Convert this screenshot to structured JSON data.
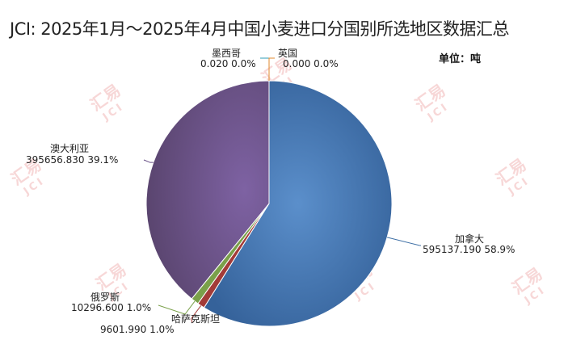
{
  "header": {
    "title": "JCI: 2025年1月～2025年4月中国小麦进口分国别所选地区数据汇总",
    "unit": "单位：吨"
  },
  "watermark": {
    "brand": "汇易",
    "abbr": "JCI"
  },
  "chart_data": {
    "type": "pie",
    "title": "JCI: 2025年1月～2025年4月中国小麦进口分国别所选地区数据汇总",
    "unit": "单位：吨",
    "slices": [
      {
        "name": "加拿大",
        "value": 595137.19,
        "value_label": "595137.190",
        "pct_label": "58.9%",
        "color": "#3e6fa5"
      },
      {
        "name": "哈萨克斯坦",
        "value": 9601.99,
        "value_label": "9601.990",
        "pct_label": "1.0%",
        "color": "#a33b38"
      },
      {
        "name": "俄罗斯",
        "value": 10296.6,
        "value_label": "10296.600",
        "pct_label": "1.0%",
        "color": "#7aa04a"
      },
      {
        "name": "澳大利亚",
        "value": 395656.83,
        "value_label": "395656.830",
        "pct_label": "39.1%",
        "color": "#664e85"
      },
      {
        "name": "墨西哥",
        "value": 0.02,
        "value_label": "0.020",
        "pct_label": "0.0%",
        "color": "#2f9bb4"
      },
      {
        "name": "英国",
        "value": 0.0,
        "value_label": "0.000",
        "pct_label": "0.0%",
        "color": "#e08a2c"
      }
    ]
  }
}
